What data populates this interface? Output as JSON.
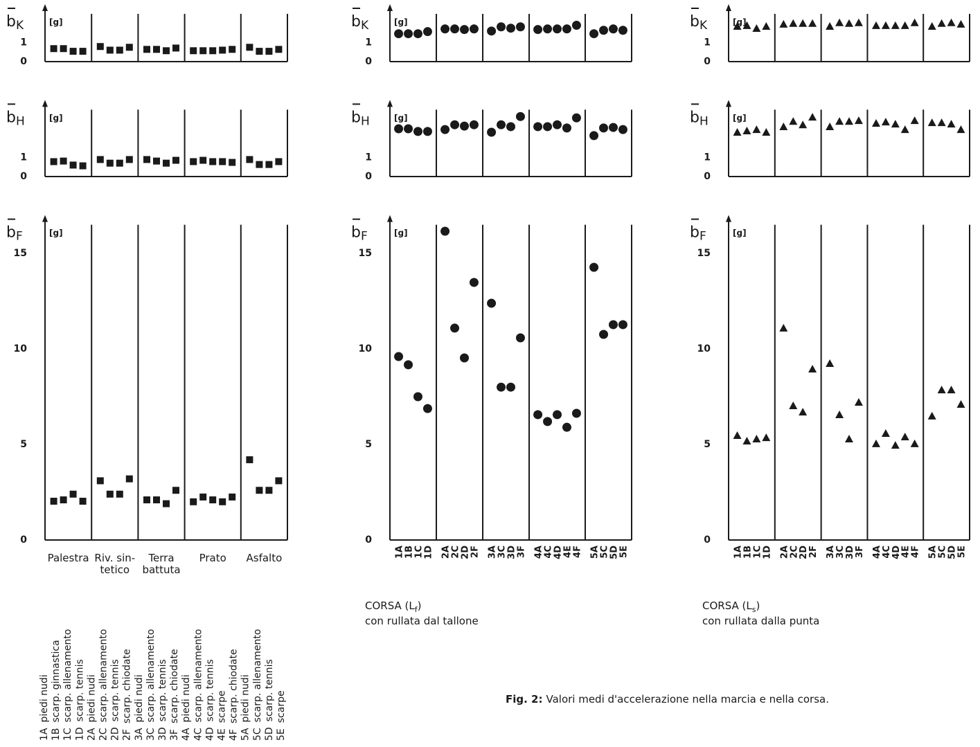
{
  "chart_data": [
    {
      "type": "scatter",
      "symbol": "b",
      "subscript": "K",
      "unit": "[g]",
      "marker": "square",
      "color": "#1a1a1a",
      "ylim": [
        0,
        2.5
      ],
      "yticks": [
        0,
        1
      ],
      "groups": [
        {
          "values": [
            0.68,
            0.68,
            0.54,
            0.54
          ]
        },
        {
          "values": [
            0.79,
            0.6,
            0.6,
            0.75
          ]
        },
        {
          "values": [
            0.64,
            0.64,
            0.57,
            0.71
          ]
        },
        {
          "values": [
            0.57,
            0.57,
            0.57,
            0.6,
            0.64
          ]
        },
        {
          "values": [
            0.75,
            0.54,
            0.54,
            0.64
          ]
        }
      ]
    },
    {
      "type": "scatter",
      "symbol": "b",
      "subscript": "H",
      "unit": "[g]",
      "marker": "square",
      "color": "#1a1a1a",
      "ylim": [
        0,
        3.5
      ],
      "yticks": [
        0,
        1
      ],
      "groups": [
        {
          "values": [
            0.78,
            0.81,
            0.6,
            0.56
          ]
        },
        {
          "values": [
            0.89,
            0.7,
            0.7,
            0.89
          ]
        },
        {
          "values": [
            0.89,
            0.81,
            0.7,
            0.85
          ]
        },
        {
          "values": [
            0.78,
            0.85,
            0.78,
            0.78,
            0.74
          ]
        },
        {
          "values": [
            0.89,
            0.63,
            0.63,
            0.78
          ]
        }
      ]
    },
    {
      "type": "scatter",
      "symbol": "b",
      "subscript": "F",
      "unit": "[g]",
      "marker": "square",
      "color": "#1a1a1a",
      "ylim": [
        0,
        16.5
      ],
      "yticks": [
        0,
        5,
        10,
        15
      ],
      "groups": [
        {
          "name": [
            "Palestra"
          ],
          "values": [
            2.03,
            2.1,
            2.4,
            2.03
          ]
        },
        {
          "name": [
            "Riv. sin-",
            "tetico"
          ],
          "values": [
            3.1,
            2.4,
            2.4,
            3.2
          ]
        },
        {
          "name": [
            "Terra",
            "battuta"
          ],
          "values": [
            2.1,
            2.1,
            1.9,
            2.6
          ]
        },
        {
          "name": [
            "Prato"
          ],
          "values": [
            2.0,
            2.25,
            2.1,
            2.0,
            2.25
          ]
        },
        {
          "name": [
            "Asfalto"
          ],
          "values": [
            4.2,
            2.6,
            2.6,
            3.1
          ]
        }
      ]
    },
    {
      "type": "scatter",
      "symbol": "b",
      "subscript": "K",
      "unit": "[g]",
      "marker": "circle",
      "color": "#1a1a1a",
      "ylim": [
        0,
        2.5
      ],
      "yticks": [
        0,
        1
      ],
      "groups": [
        {
          "values": [
            1.46,
            1.46,
            1.46,
            1.57
          ]
        },
        {
          "values": [
            1.71,
            1.71,
            1.68,
            1.71
          ]
        },
        {
          "values": [
            1.6,
            1.82,
            1.75,
            1.82
          ]
        },
        {
          "values": [
            1.68,
            1.71,
            1.71,
            1.71,
            1.9
          ]
        },
        {
          "values": [
            1.46,
            1.64,
            1.71,
            1.64
          ]
        }
      ]
    },
    {
      "type": "scatter",
      "symbol": "b",
      "subscript": "H",
      "unit": "[g]",
      "marker": "circle",
      "color": "#1a1a1a",
      "ylim": [
        0,
        3.5
      ],
      "yticks": [
        0,
        1
      ],
      "groups": [
        {
          "values": [
            2.5,
            2.5,
            2.36,
            2.36
          ]
        },
        {
          "values": [
            2.46,
            2.71,
            2.64,
            2.71
          ]
        },
        {
          "values": [
            2.32,
            2.71,
            2.61,
            3.14
          ]
        },
        {
          "values": [
            2.61,
            2.61,
            2.71,
            2.54,
            3.07
          ]
        },
        {
          "values": [
            2.14,
            2.54,
            2.57,
            2.46
          ]
        }
      ]
    },
    {
      "type": "scatter",
      "symbol": "b",
      "subscript": "F",
      "unit": "[g]",
      "marker": "circle",
      "color": "#1a1a1a",
      "ylim": [
        0,
        16.5
      ],
      "yticks": [
        0,
        5,
        10,
        15
      ],
      "groups": [
        {
          "categories": [
            "1A",
            "1B",
            "1C",
            "1D"
          ],
          "values": [
            9.6,
            9.17,
            7.5,
            6.88
          ]
        },
        {
          "categories": [
            "2A",
            "2C",
            "2D",
            "2F"
          ],
          "values": [
            16.16,
            11.09,
            9.53,
            13.48
          ]
        },
        {
          "categories": [
            "3A",
            "3C",
            "3D",
            "3F"
          ],
          "values": [
            12.39,
            8.0,
            8.0,
            10.58
          ]
        },
        {
          "categories": [
            "4A",
            "4C",
            "4D",
            "4E",
            "4F"
          ],
          "values": [
            6.56,
            6.2,
            6.56,
            5.9,
            6.63
          ]
        },
        {
          "categories": [
            "5A",
            "5C",
            "5D",
            "5E"
          ],
          "values": [
            14.27,
            10.76,
            11.27,
            11.27
          ]
        }
      ]
    },
    {
      "type": "scatter",
      "symbol": "b",
      "subscript": "K",
      "unit": "[g]",
      "marker": "triangle",
      "color": "#1a1a1a",
      "ylim": [
        0,
        2.5
      ],
      "yticks": [
        0,
        1
      ],
      "groups": [
        {
          "values": [
            1.85,
            1.89,
            1.74,
            1.85
          ]
        },
        {
          "values": [
            1.96,
            2.0,
            2.0,
            2.0
          ]
        },
        {
          "values": [
            1.85,
            2.04,
            2.0,
            2.04
          ]
        },
        {
          "values": [
            1.89,
            1.89,
            1.89,
            1.89,
            2.04
          ]
        },
        {
          "values": [
            1.85,
            2.0,
            2.04,
            1.96
          ]
        }
      ]
    },
    {
      "type": "scatter",
      "symbol": "b",
      "subscript": "H",
      "unit": "[g]",
      "marker": "triangle",
      "color": "#1a1a1a",
      "ylim": [
        0,
        3.5
      ],
      "yticks": [
        0,
        1
      ],
      "groups": [
        {
          "values": [
            2.32,
            2.39,
            2.46,
            2.32
          ]
        },
        {
          "values": [
            2.61,
            2.89,
            2.71,
            3.11
          ]
        },
        {
          "values": [
            2.61,
            2.89,
            2.89,
            2.93
          ]
        },
        {
          "values": [
            2.79,
            2.86,
            2.75,
            2.46,
            2.93
          ]
        },
        {
          "values": [
            2.82,
            2.82,
            2.75,
            2.46
          ]
        }
      ]
    },
    {
      "type": "scatter",
      "symbol": "b",
      "subscript": "F",
      "unit": "[g]",
      "marker": "triangle",
      "color": "#1a1a1a",
      "ylim": [
        0,
        16.5
      ],
      "yticks": [
        0,
        5,
        10,
        15
      ],
      "groups": [
        {
          "categories": [
            "1A",
            "1B",
            "1C",
            "1D"
          ],
          "values": [
            5.47,
            5.18,
            5.29,
            5.36
          ]
        },
        {
          "categories": [
            "2A",
            "2C",
            "2D",
            "2F"
          ],
          "values": [
            11.09,
            7.03,
            6.7,
            8.95
          ]
        },
        {
          "categories": [
            "3A",
            "3C",
            "3D",
            "3F"
          ],
          "values": [
            9.24,
            6.56,
            5.29,
            7.21
          ]
        },
        {
          "categories": [
            "4A",
            "4C",
            "4D",
            "4E",
            "4F"
          ],
          "values": [
            5.04,
            5.58,
            4.96,
            5.4,
            5.04
          ]
        },
        {
          "categories": [
            "5A",
            "5C",
            "5D",
            "5E"
          ],
          "values": [
            6.49,
            7.86,
            7.86,
            7.1
          ]
        }
      ]
    }
  ],
  "legend": [
    {
      "code": "1A",
      "text": "piedi nudi"
    },
    {
      "code": "1B",
      "text": "scarp. ginnastica"
    },
    {
      "code": "1C",
      "text": "scarp. allenamento"
    },
    {
      "code": "1D",
      "text": "scarp. tennis"
    },
    {
      "code": "2A",
      "text": "piedi nudi"
    },
    {
      "code": "2C",
      "text": "scarp. allenamento"
    },
    {
      "code": "2D",
      "text": "scarp. tennis"
    },
    {
      "code": "2F",
      "text": "scarp. chiodate"
    },
    {
      "code": "3A",
      "text": "piedi nudi"
    },
    {
      "code": "3C",
      "text": "scarp. allenamento"
    },
    {
      "code": "3D",
      "text": "scarp. tennis"
    },
    {
      "code": "3F",
      "text": "scarp. chiodate"
    },
    {
      "code": "4A",
      "text": "piedi nudi"
    },
    {
      "code": "4C",
      "text": "scarp. allenamento"
    },
    {
      "code": "4D",
      "text": "scarp. tennis"
    },
    {
      "code": "4E",
      "text": "scarpe"
    },
    {
      "code": "4F",
      "text": "scarp. chiodate"
    },
    {
      "code": "5A",
      "text": "piedi nudi"
    },
    {
      "code": "5C",
      "text": "scarp. allenamento"
    },
    {
      "code": "5D",
      "text": "scarp. tennis"
    },
    {
      "code": "5E",
      "text": "scarpe"
    }
  ],
  "captions": [
    {
      "text": "CORSA   (L",
      "sub": "f",
      "end": ")",
      "line2": "con rullata dal tallone"
    },
    {
      "text": "CORSA   (L",
      "sub": "s",
      "end": ")",
      "line2": "con rullata dalla punta"
    }
  ],
  "figure_caption": {
    "label": "Fig. 2:",
    "text": "Valori medi d'accelerazione nella marcia e nella corsa."
  }
}
